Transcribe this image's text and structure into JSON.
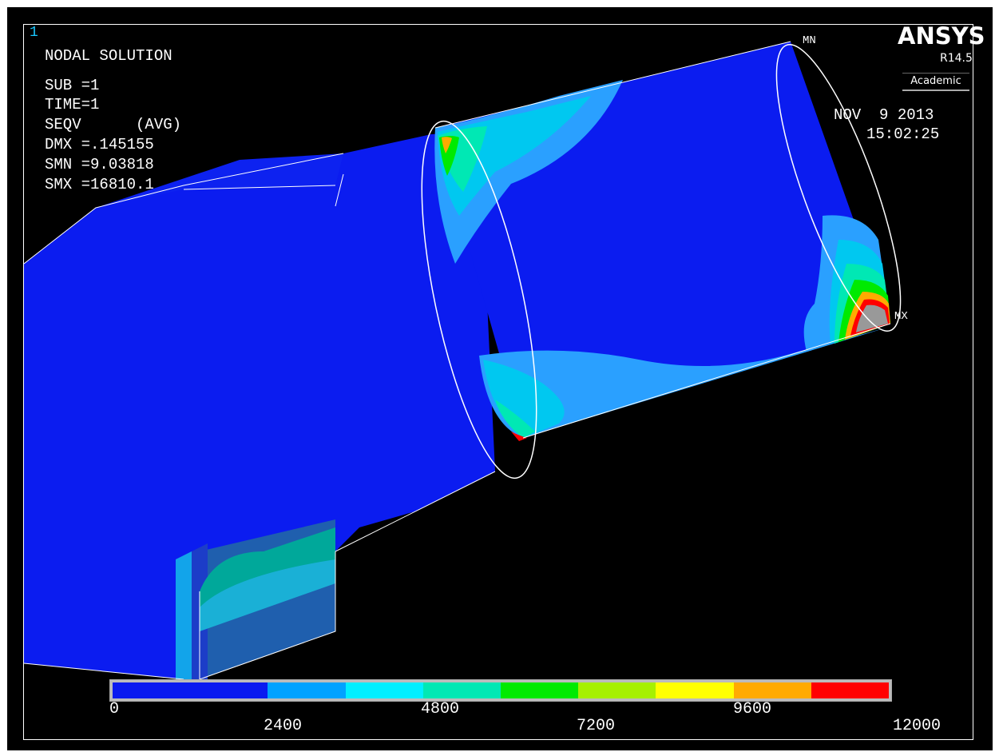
{
  "window": {
    "number": "1"
  },
  "solution": {
    "title": "NODAL SOLUTION",
    "lines": [
      "SUB =1",
      "TIME=1",
      "SEQV      (AVG)",
      "DMX =.145155",
      "SMN =9.03818",
      "SMX =16810.1"
    ]
  },
  "brand": {
    "name": "ANSYS",
    "release": "R14.5",
    "license": "Academic"
  },
  "timestamp": {
    "date": "NOV  9 2013",
    "time": "15:02:25"
  },
  "markers": {
    "min": "MN",
    "max": "MX"
  },
  "legend": {
    "colors": [
      "#0a1af0",
      "#00a2ff",
      "#00efff",
      "#00e8b4",
      "#00ea00",
      "#a6f000",
      "#ffff00",
      "#ffaa00",
      "#ff0000"
    ],
    "ticks_bottom": [
      "0",
      "4800",
      "9600"
    ],
    "ticks_top_row": [
      "2400",
      "7200",
      "12000"
    ]
  },
  "colors": {
    "background": "#000000",
    "frame": "#ffffff",
    "model_base": "#0a1af0"
  }
}
